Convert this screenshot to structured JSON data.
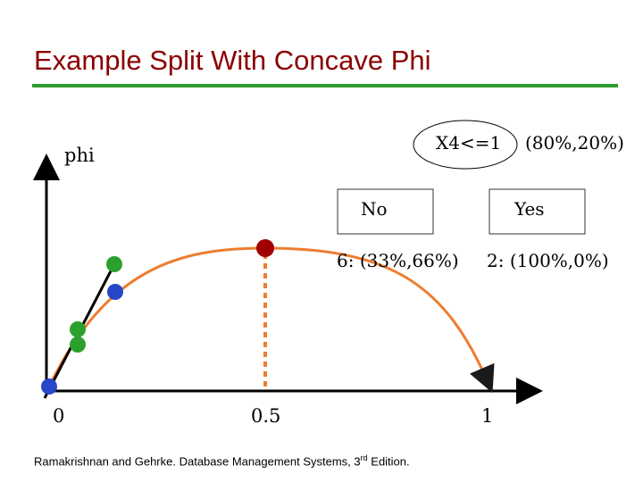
{
  "title": "Example Split With Concave Phi",
  "axis": {
    "y_label": "phi",
    "x_ticks": [
      "0",
      "0.5",
      "1"
    ]
  },
  "tree": {
    "root_label": "X4<=1",
    "root_split": "(80%,20%)",
    "left_label": "No",
    "right_label": "Yes",
    "left_leaf": "6: (33%,66%)",
    "right_leaf": "2: (100%,0%)"
  },
  "footer": {
    "text": "Ramakrishnan and Gehrke. Database Management Systems, 3",
    "superscript": "rd",
    "suffix": " Edition."
  },
  "colors": {
    "title": "#8b0000",
    "rule": "#2e9b2e",
    "curve": "#ed7d31",
    "green_point": "#2ca02c",
    "blue_point": "#2747c8",
    "red_point": "#a00000"
  }
}
